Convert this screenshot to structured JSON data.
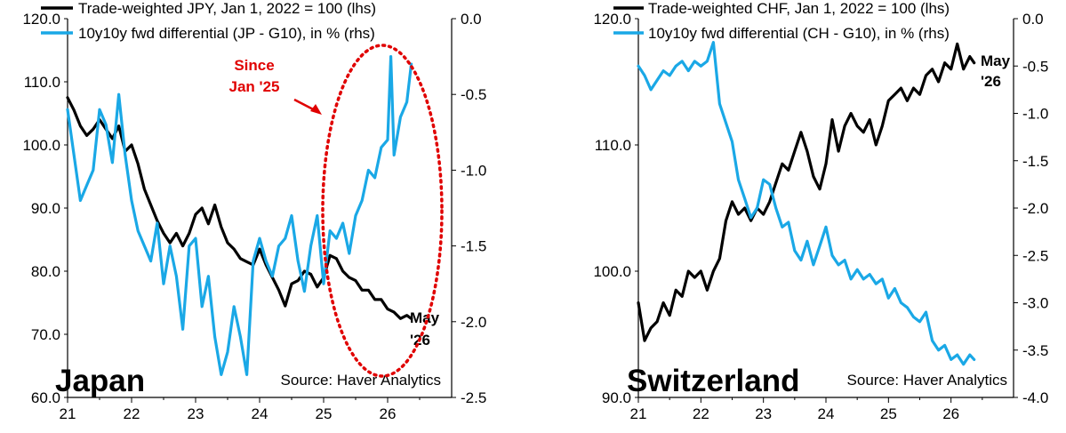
{
  "chart_data": [
    {
      "type": "line",
      "panel_title": "Japan",
      "source": "Source: Haver Analytics",
      "end_label": [
        "May",
        "'26"
      ],
      "annotation": {
        "lines": [
          "Since",
          "Jan '25"
        ],
        "color": "#e00000"
      },
      "x_ticks": [
        "21",
        "22",
        "23",
        "24",
        "25",
        "26"
      ],
      "x_range": [
        2021.0,
        2027.0
      ],
      "left_axis": {
        "range": [
          60,
          120
        ],
        "ticks": [
          "60.0",
          "70.0",
          "80.0",
          "90.0",
          "100.0",
          "110.0",
          "120.0"
        ]
      },
      "right_axis": {
        "range": [
          -2.5,
          0.0
        ],
        "ticks": [
          "-2.5",
          "-2.0",
          "-1.5",
          "-1.0",
          "-0.5",
          "0.0"
        ]
      },
      "series": [
        {
          "name": "Trade-weighted JPY, Jan 1, 2022 = 100 (lhs)",
          "axis": "left",
          "color": "#000000",
          "x": [
            2021.0,
            2021.1,
            2021.2,
            2021.3,
            2021.4,
            2021.5,
            2021.6,
            2021.7,
            2021.8,
            2021.9,
            2022.0,
            2022.1,
            2022.2,
            2022.3,
            2022.4,
            2022.5,
            2022.6,
            2022.7,
            2022.8,
            2022.9,
            2023.0,
            2023.1,
            2023.2,
            2023.3,
            2023.4,
            2023.5,
            2023.6,
            2023.7,
            2023.8,
            2023.9,
            2024.0,
            2024.1,
            2024.2,
            2024.3,
            2024.4,
            2024.5,
            2024.6,
            2024.7,
            2024.8,
            2024.9,
            2025.0,
            2025.1,
            2025.2,
            2025.3,
            2025.4,
            2025.5,
            2025.6,
            2025.7,
            2025.8,
            2025.9,
            2026.0,
            2026.1,
            2026.2,
            2026.3,
            2026.37
          ],
          "values": [
            107.5,
            105.5,
            103.0,
            101.5,
            102.5,
            104.0,
            102.5,
            101.0,
            103.0,
            99.0,
            100.0,
            97.0,
            93.0,
            90.5,
            88.0,
            86.0,
            84.5,
            86.0,
            84.0,
            86.0,
            89.0,
            90.0,
            87.5,
            90.5,
            87.0,
            84.5,
            83.5,
            82.0,
            81.5,
            81.0,
            83.5,
            81.0,
            79.0,
            77.0,
            74.5,
            78.0,
            78.5,
            80.0,
            79.5,
            77.5,
            79.0,
            82.5,
            82.0,
            80.0,
            79.0,
            78.5,
            77.0,
            77.0,
            75.5,
            75.5,
            74.0,
            73.5,
            72.5,
            73.0,
            72.5
          ]
        },
        {
          "name": "10y10y fwd differential (JP - G10), in % (rhs)",
          "axis": "right",
          "color": "#1aa8e6",
          "x": [
            2021.0,
            2021.1,
            2021.2,
            2021.3,
            2021.4,
            2021.5,
            2021.6,
            2021.7,
            2021.8,
            2021.9,
            2022.0,
            2022.1,
            2022.2,
            2022.3,
            2022.4,
            2022.5,
            2022.6,
            2022.7,
            2022.8,
            2022.9,
            2023.0,
            2023.1,
            2023.2,
            2023.3,
            2023.4,
            2023.5,
            2023.6,
            2023.7,
            2023.8,
            2023.9,
            2024.0,
            2024.1,
            2024.2,
            2024.3,
            2024.4,
            2024.5,
            2024.6,
            2024.7,
            2024.8,
            2024.9,
            2025.0,
            2025.1,
            2025.2,
            2025.3,
            2025.4,
            2025.5,
            2025.6,
            2025.7,
            2025.8,
            2025.9,
            2026.0,
            2026.05,
            2026.1,
            2026.2,
            2026.3,
            2026.37
          ],
          "values": [
            -0.6,
            -0.9,
            -1.2,
            -1.1,
            -1.0,
            -0.6,
            -0.7,
            -0.95,
            -0.5,
            -0.9,
            -1.2,
            -1.4,
            -1.5,
            -1.6,
            -1.35,
            -1.75,
            -1.5,
            -1.7,
            -2.05,
            -1.5,
            -1.45,
            -1.9,
            -1.7,
            -2.1,
            -2.35,
            -2.2,
            -1.9,
            -2.1,
            -2.35,
            -1.6,
            -1.45,
            -1.6,
            -1.7,
            -1.5,
            -1.45,
            -1.3,
            -1.6,
            -1.8,
            -1.5,
            -1.3,
            -1.75,
            -1.4,
            -1.45,
            -1.35,
            -1.55,
            -1.3,
            -1.2,
            -1.0,
            -1.05,
            -0.85,
            -0.8,
            -0.25,
            -0.9,
            -0.65,
            -0.55,
            -0.3
          ]
        }
      ]
    },
    {
      "type": "line",
      "panel_title": "Switzerland",
      "source": "Source: Haver Analytics",
      "end_label": [
        "May",
        "'26"
      ],
      "x_ticks": [
        "21",
        "22",
        "23",
        "24",
        "25",
        "26"
      ],
      "x_range": [
        2021.0,
        2027.0
      ],
      "left_axis": {
        "range": [
          90,
          120
        ],
        "ticks": [
          "90.0",
          "100.0",
          "110.0",
          "120.0"
        ]
      },
      "right_axis": {
        "range": [
          -4.0,
          0.0
        ],
        "ticks": [
          "-4.0",
          "-3.5",
          "-3.0",
          "-2.5",
          "-2.0",
          "-1.5",
          "-1.0",
          "-0.5",
          "0.0"
        ]
      },
      "series": [
        {
          "name": "Trade-weighted CHF, Jan 1, 2022 = 100 (lhs)",
          "axis": "left",
          "color": "#000000",
          "x": [
            2021.0,
            2021.1,
            2021.2,
            2021.3,
            2021.4,
            2021.5,
            2021.6,
            2021.7,
            2021.8,
            2021.9,
            2022.0,
            2022.1,
            2022.2,
            2022.3,
            2022.4,
            2022.5,
            2022.6,
            2022.7,
            2022.8,
            2022.9,
            2023.0,
            2023.1,
            2023.2,
            2023.3,
            2023.4,
            2023.5,
            2023.6,
            2023.7,
            2023.8,
            2023.9,
            2024.0,
            2024.1,
            2024.2,
            2024.3,
            2024.4,
            2024.5,
            2024.6,
            2024.7,
            2024.8,
            2024.9,
            2025.0,
            2025.1,
            2025.2,
            2025.3,
            2025.4,
            2025.5,
            2025.6,
            2025.7,
            2025.8,
            2025.9,
            2026.0,
            2026.1,
            2026.2,
            2026.3,
            2026.37
          ],
          "values": [
            97.5,
            94.5,
            95.5,
            96.0,
            97.5,
            96.5,
            98.5,
            98.0,
            100.0,
            99.5,
            100.0,
            98.5,
            100.0,
            101.0,
            104.0,
            105.5,
            104.5,
            105.0,
            104.0,
            105.0,
            104.5,
            105.5,
            107.0,
            108.5,
            108.0,
            109.5,
            111.0,
            109.5,
            107.5,
            106.5,
            108.5,
            112.0,
            109.5,
            111.5,
            112.5,
            111.5,
            111.0,
            112.0,
            110.0,
            111.5,
            113.5,
            114.0,
            114.5,
            113.5,
            114.5,
            114.0,
            115.5,
            116.0,
            115.0,
            116.5,
            116.0,
            118.0,
            116.0,
            117.0,
            116.5
          ]
        },
        {
          "name": "10y10y fwd differential (CH - G10), in % (rhs)",
          "axis": "right",
          "color": "#1aa8e6",
          "x": [
            2021.0,
            2021.1,
            2021.2,
            2021.3,
            2021.4,
            2021.5,
            2021.6,
            2021.7,
            2021.8,
            2021.9,
            2022.0,
            2022.1,
            2022.2,
            2022.3,
            2022.4,
            2022.5,
            2022.6,
            2022.7,
            2022.8,
            2022.9,
            2023.0,
            2023.1,
            2023.2,
            2023.3,
            2023.4,
            2023.5,
            2023.6,
            2023.7,
            2023.8,
            2023.9,
            2024.0,
            2024.1,
            2024.2,
            2024.3,
            2024.4,
            2024.5,
            2024.6,
            2024.7,
            2024.8,
            2024.9,
            2025.0,
            2025.1,
            2025.2,
            2025.3,
            2025.4,
            2025.5,
            2025.6,
            2025.7,
            2025.8,
            2025.9,
            2026.0,
            2026.1,
            2026.2,
            2026.3,
            2026.37
          ],
          "values": [
            -0.5,
            -0.6,
            -0.75,
            -0.65,
            -0.55,
            -0.6,
            -0.5,
            -0.45,
            -0.55,
            -0.45,
            -0.5,
            -0.45,
            -0.25,
            -0.9,
            -1.1,
            -1.3,
            -1.7,
            -1.9,
            -2.1,
            -2.0,
            -1.7,
            -1.75,
            -2.0,
            -2.2,
            -2.15,
            -2.45,
            -2.55,
            -2.35,
            -2.6,
            -2.4,
            -2.2,
            -2.5,
            -2.6,
            -2.55,
            -2.75,
            -2.65,
            -2.75,
            -2.7,
            -2.8,
            -2.75,
            -2.95,
            -2.85,
            -3.0,
            -3.05,
            -3.15,
            -3.2,
            -3.1,
            -3.4,
            -3.5,
            -3.45,
            -3.6,
            -3.55,
            -3.65,
            -3.55,
            -3.6
          ]
        }
      ]
    }
  ]
}
